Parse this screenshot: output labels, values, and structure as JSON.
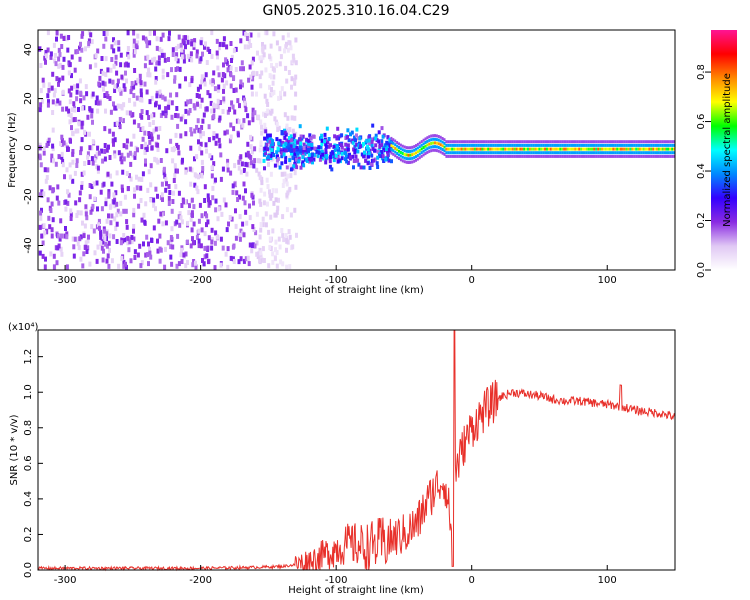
{
  "title": "GN05.2025.310.16.04.C29",
  "chart_data": [
    {
      "type": "heatmap",
      "xlabel": "Height of straight line (km)",
      "ylabel": "Frequency (Hz)",
      "xlim": [
        -320,
        150
      ],
      "ylim": [
        -50,
        48
      ],
      "xticks": [
        -300,
        -200,
        -100,
        0,
        100
      ],
      "yticks": [
        -40,
        -20,
        0,
        20,
        40
      ],
      "colorbar": {
        "label": "Normalized spectral amplitude",
        "range": [
          0,
          0.97
        ],
        "ticks": [
          0.0,
          0.2,
          0.4,
          0.6,
          0.8
        ],
        "colors": [
          "#ffffff",
          "#e0c8f4",
          "#8a2be2",
          "#3300ff",
          "#0088ff",
          "#00ffff",
          "#00ff00",
          "#ffff00",
          "#ff8800",
          "#ff0000",
          "#ff1493"
        ]
      },
      "regions": [
        {
          "x": [
            -320,
            -130
          ],
          "freq_spread": 48,
          "amplitude": 0.12,
          "pattern": "broadband noise"
        },
        {
          "x": [
            -155,
            -60
          ],
          "freq_spread": 12,
          "amplitude": 0.35,
          "pattern": "scattered cluster"
        },
        {
          "x": [
            -60,
            150
          ],
          "freq_center": 0,
          "amplitude": 0.8,
          "pattern": "narrow carrier line"
        }
      ],
      "grid": false
    },
    {
      "type": "line",
      "xlabel": "Height of straight line (km)",
      "ylabel": "SNR (10 * v/v)",
      "y_multiplier": "(x10⁴)",
      "xlim": [
        -320,
        150
      ],
      "ylim": [
        0,
        1.35
      ],
      "xticks": [
        -300,
        -200,
        -100,
        0,
        100
      ],
      "yticks": [
        0.0,
        0.2,
        0.4,
        0.6,
        0.8,
        1.0,
        1.2
      ],
      "series_color": "#e8302a",
      "series": [
        {
          "x": [
            -320,
            -250,
            -200,
            -160,
            -140,
            -130,
            -120,
            -110,
            -100,
            -90,
            -80,
            -70,
            -60,
            -50,
            -40,
            -35,
            -30,
            -25,
            -20,
            -15,
            -12,
            -10,
            -5,
            0,
            10,
            20,
            30,
            40,
            50,
            60,
            70,
            80,
            90,
            100,
            110,
            120,
            130,
            140,
            150
          ],
          "values": [
            0.01,
            0.01,
            0.01,
            0.015,
            0.02,
            0.03,
            0.05,
            0.08,
            0.12,
            0.15,
            0.13,
            0.14,
            0.17,
            0.2,
            0.26,
            0.35,
            0.42,
            0.48,
            0.5,
            0.25,
            0.55,
            0.6,
            0.72,
            0.8,
            0.9,
            0.97,
            1.0,
            0.99,
            0.98,
            0.96,
            0.95,
            0.95,
            0.94,
            0.93,
            0.92,
            0.9,
            0.89,
            0.88,
            0.86
          ]
        }
      ],
      "grid": false
    }
  ]
}
